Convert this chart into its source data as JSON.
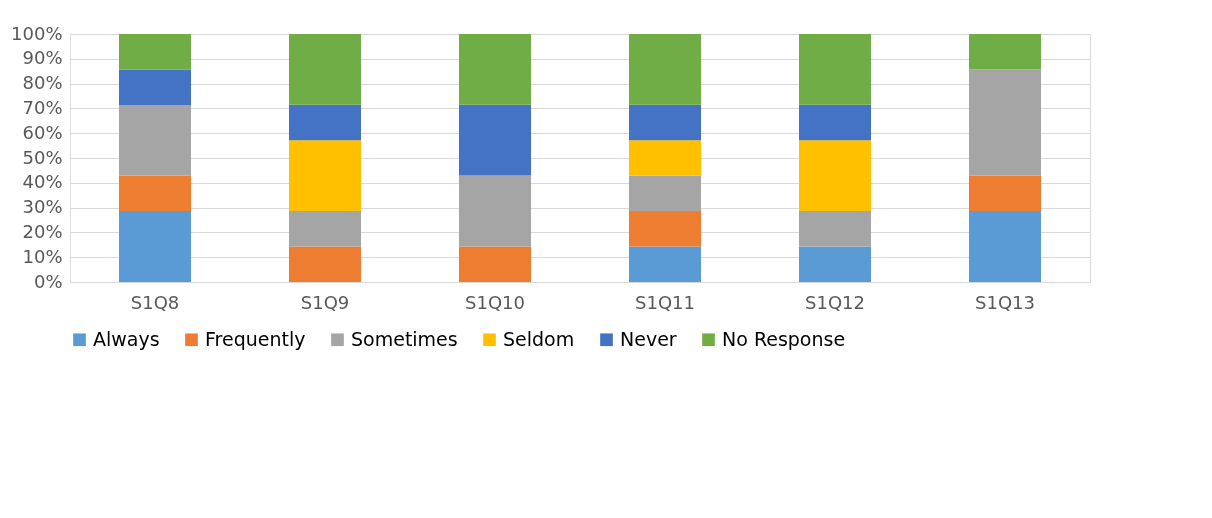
{
  "chart_data": {
    "type": "bar",
    "stacked": true,
    "categories": [
      "S1Q8",
      "S1Q9",
      "S1Q10",
      "S1Q11",
      "S1Q12",
      "S1Q13"
    ],
    "series": [
      {
        "name": "Always",
        "color": "#5b9bd5",
        "values": [
          28.6,
          0,
          0,
          14.3,
          14.3,
          28.6
        ]
      },
      {
        "name": "Frequently",
        "color": "#ed7d31",
        "values": [
          14.3,
          14.3,
          14.3,
          14.3,
          0,
          14.3
        ]
      },
      {
        "name": "Sometimes",
        "color": "#a5a5a5",
        "values": [
          28.5,
          14.3,
          28.6,
          14.3,
          14.3,
          42.8
        ]
      },
      {
        "name": "Seldom",
        "color": "#ffc000",
        "values": [
          0,
          28.6,
          0,
          14.3,
          28.6,
          0
        ]
      },
      {
        "name": "Never",
        "color": "#4472c4",
        "values": [
          14.3,
          14.3,
          28.6,
          14.3,
          14.3,
          0
        ]
      },
      {
        "name": "No Response",
        "color": "#70ad47",
        "values": [
          14.3,
          28.5,
          28.5,
          28.5,
          28.5,
          14.3
        ]
      }
    ],
    "ylim": [
      0,
      100
    ],
    "yticks": [
      {
        "value": 0,
        "label": "0%"
      },
      {
        "value": 10,
        "label": "10%"
      },
      {
        "value": 20,
        "label": "20%"
      },
      {
        "value": 30,
        "label": "30%"
      },
      {
        "value": 40,
        "label": "40%"
      },
      {
        "value": 50,
        "label": "50%"
      },
      {
        "value": 60,
        "label": "60%"
      },
      {
        "value": 70,
        "label": "70%"
      },
      {
        "value": 80,
        "label": "80%"
      },
      {
        "value": 90,
        "label": "90%"
      },
      {
        "value": 100,
        "label": "100%"
      }
    ],
    "grid": "y",
    "legend": "bottom"
  }
}
